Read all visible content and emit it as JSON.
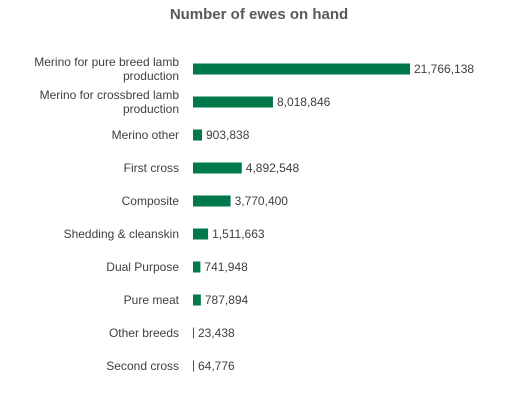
{
  "chart_data": {
    "type": "bar",
    "orientation": "horizontal",
    "title": "Number of ewes on hand",
    "xlabel": "",
    "ylabel": "",
    "categories": [
      [
        "Merino for pure breed lamb",
        "production"
      ],
      [
        "Merino for crossbred lamb",
        "production"
      ],
      [
        "Merino other"
      ],
      [
        "First cross"
      ],
      [
        "Composite"
      ],
      [
        "Shedding & cleanskin"
      ],
      [
        "Dual Purpose"
      ],
      [
        "Pure meat"
      ],
      [
        "Other breeds"
      ],
      [
        "Second cross"
      ]
    ],
    "values": [
      21766138,
      8018846,
      903838,
      4892548,
      3770400,
      1511663,
      741948,
      787894,
      23438,
      64776
    ],
    "data_labels": [
      "21,766,138",
      "8,018,846",
      "903,838",
      "4,892,548",
      "3,770,400",
      "1,511,663",
      "741,948",
      "787,894",
      "23,438",
      "64,776"
    ],
    "xlim": [
      0,
      21766138
    ],
    "grid": false,
    "legend": "none",
    "bar_color": "#00794a",
    "label_color": "#404040"
  }
}
